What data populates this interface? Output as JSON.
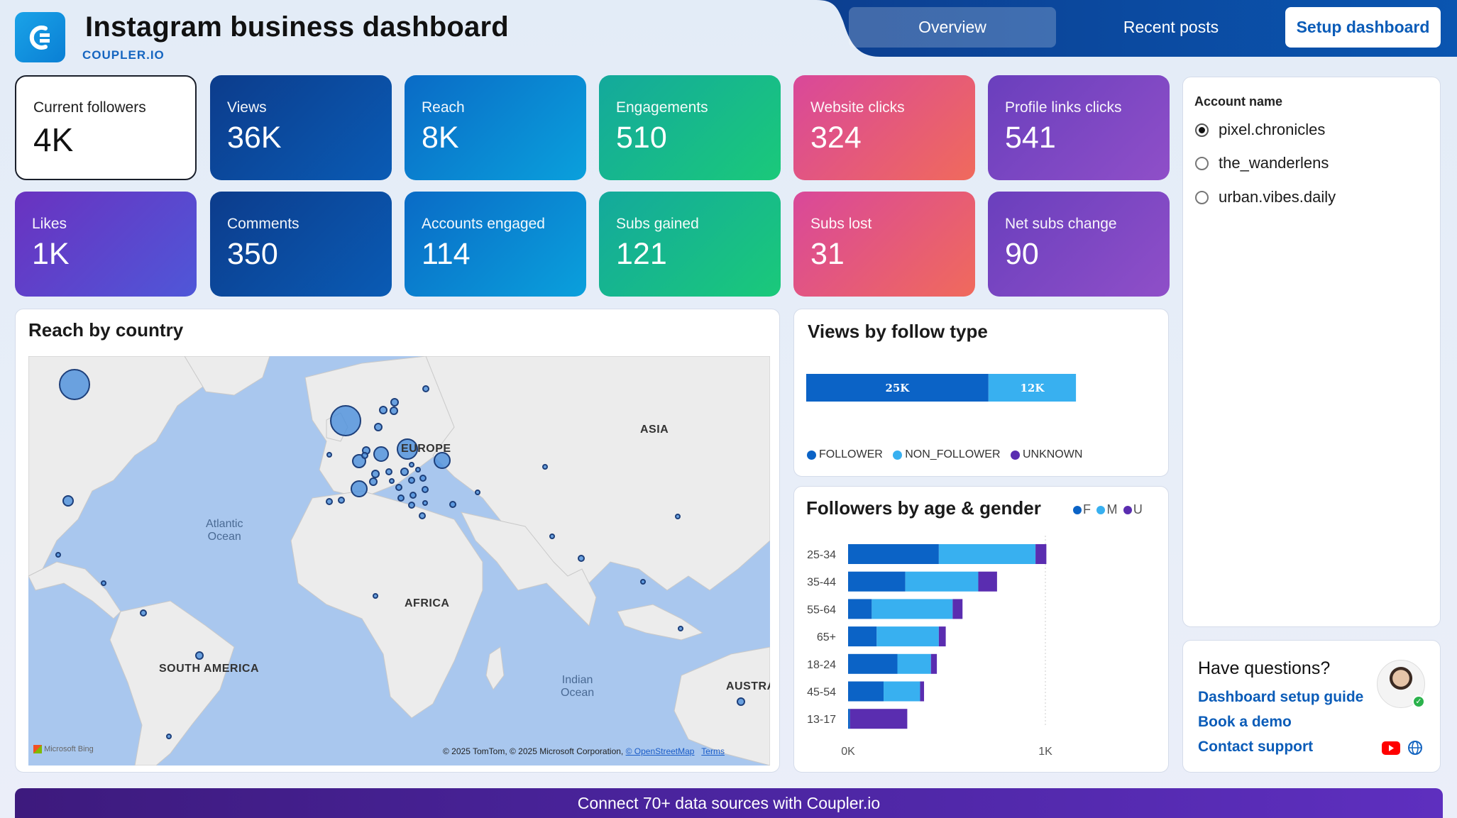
{
  "header": {
    "title": "Instagram business dashboard",
    "brand": "COUPLER.IO",
    "tabs": [
      {
        "label": "Overview",
        "active": true
      },
      {
        "label": "Recent posts",
        "active": false
      }
    ],
    "setup_button": "Setup dashboard"
  },
  "kpis": [
    {
      "label": "Current followers",
      "value": "4K"
    },
    {
      "label": "Views",
      "value": "36K"
    },
    {
      "label": "Reach",
      "value": "8K"
    },
    {
      "label": "Engagements",
      "value": "510"
    },
    {
      "label": "Website clicks",
      "value": "324"
    },
    {
      "label": "Profile links clicks",
      "value": "541"
    },
    {
      "label": "Likes",
      "value": "1K"
    },
    {
      "label": "Comments",
      "value": "350"
    },
    {
      "label": "Accounts engaged",
      "value": "114"
    },
    {
      "label": "Subs gained",
      "value": "121"
    },
    {
      "label": "Subs lost",
      "value": "31"
    },
    {
      "label": "Net subs change",
      "value": "90"
    }
  ],
  "map": {
    "title": "Reach by country",
    "labels": {
      "asia": "ASIA",
      "europe": "EUROPE",
      "africa": "AFRICA",
      "south_america": "SOUTH AMERICA",
      "australia": "AUSTRA"
    },
    "oceans": {
      "atlantic_1": "Atlantic",
      "atlantic_2": "Ocean",
      "indian_1": "Indian",
      "indian_2": "Ocean"
    },
    "attribution": "© 2025 TomTom, © 2025 Microsoft Corporation,",
    "osm_link": "© OpenStreetMap",
    "terms_link": "Terms",
    "bing": "Microsoft Bing"
  },
  "views_by_follow": {
    "title": "Views by follow type",
    "bar_labels": {
      "follower": "25K",
      "non_follower": "12K"
    },
    "legend": [
      "FOLLOWER",
      "NON_FOLLOWER",
      "UNKNOWN"
    ]
  },
  "age_gender": {
    "title": "Followers by age & gender",
    "legend": [
      "F",
      "M",
      "U"
    ],
    "axis": [
      "0K",
      "1K"
    ]
  },
  "chart_data": [
    {
      "type": "bar",
      "title": "Views by follow type",
      "orientation": "horizontal-stacked",
      "series": [
        {
          "name": "FOLLOWER",
          "values": [
            25000
          ]
        },
        {
          "name": "NON_FOLLOWER",
          "values": [
            12000
          ]
        },
        {
          "name": "UNKNOWN",
          "values": [
            0
          ]
        }
      ],
      "colors": {
        "FOLLOWER": "#0b63c6",
        "NON_FOLLOWER": "#38b0f0",
        "UNKNOWN": "#5a2db0"
      }
    },
    {
      "type": "bar",
      "title": "Followers by age & gender",
      "orientation": "horizontal-stacked",
      "categories": [
        "25-34",
        "35-44",
        "55-64",
        "65+",
        "18-24",
        "45-54",
        "13-17"
      ],
      "series": [
        {
          "name": "F",
          "values": [
            460,
            290,
            120,
            145,
            250,
            180,
            10
          ]
        },
        {
          "name": "M",
          "values": [
            490,
            370,
            410,
            315,
            170,
            185,
            0
          ]
        },
        {
          "name": "U",
          "values": [
            55,
            95,
            50,
            35,
            30,
            20,
            290
          ]
        }
      ],
      "xlim": [
        0,
        1000
      ],
      "xticks": [
        "0K",
        "1K"
      ],
      "colors": {
        "F": "#0b63c6",
        "M": "#38b0f0",
        "U": "#5a2db0"
      }
    }
  ],
  "accounts": {
    "label": "Account name",
    "options": [
      {
        "name": "pixel.chronicles",
        "selected": true
      },
      {
        "name": "the_wanderlens",
        "selected": false
      },
      {
        "name": "urban.vibes.daily",
        "selected": false
      }
    ]
  },
  "help": {
    "title": "Have questions?",
    "links": [
      "Dashboard setup guide",
      "Book a demo",
      "Contact support"
    ]
  },
  "footer": "Connect 70+ data sources with Coupler.io"
}
